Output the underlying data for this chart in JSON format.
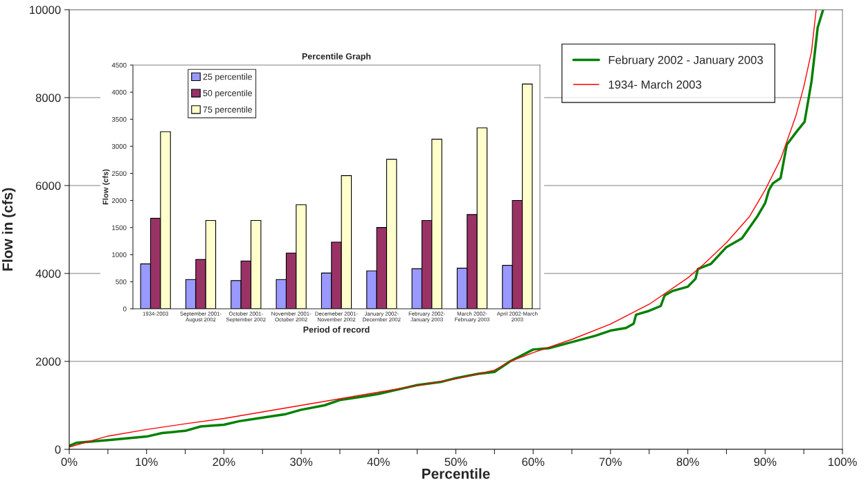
{
  "chart_data": [
    {
      "type": "line",
      "xlabel": "Percentile",
      "ylabel": "Flow in (cfs)",
      "xlim": [
        0,
        100
      ],
      "ylim": [
        0,
        10000
      ],
      "xticks": [
        {
          "value": 0,
          "label": "0%"
        },
        {
          "value": 5,
          "label": null
        },
        {
          "value": 10,
          "label": "10%"
        },
        {
          "value": 15,
          "label": null
        },
        {
          "value": 20,
          "label": "20%"
        },
        {
          "value": 25,
          "label": null
        },
        {
          "value": 30,
          "label": "30%"
        },
        {
          "value": 35,
          "label": null
        },
        {
          "value": 40,
          "label": "40%"
        },
        {
          "value": 45,
          "label": null
        },
        {
          "value": 50,
          "label": "50%"
        },
        {
          "value": 55,
          "label": null
        },
        {
          "value": 60,
          "label": "60%"
        },
        {
          "value": 65,
          "label": null
        },
        {
          "value": 70,
          "label": "70%"
        },
        {
          "value": 75,
          "label": null
        },
        {
          "value": 80,
          "label": "80%"
        },
        {
          "value": 85,
          "label": null
        },
        {
          "value": 90,
          "label": "90%"
        },
        {
          "value": 95,
          "label": null
        },
        {
          "value": 100,
          "label": "100%"
        }
      ],
      "yticks": [
        0,
        2000,
        4000,
        6000,
        8000,
        10000
      ],
      "grid": "y",
      "legend": "top right",
      "marker": "none",
      "line_style": "solid",
      "series": [
        {
          "name": "February 2002 - January 2003",
          "color": "#008000",
          "x": [
            0,
            1,
            5,
            10,
            12,
            15,
            17,
            20,
            22,
            25,
            28,
            30,
            33,
            35,
            38,
            40,
            43,
            45,
            48,
            50,
            53,
            55,
            57,
            60,
            62,
            65,
            68,
            70,
            72,
            73,
            73.3,
            75,
            76.5,
            77,
            78,
            80,
            81,
            81.3,
            83,
            85,
            87,
            89,
            90,
            90.5,
            91,
            92,
            92.8,
            94,
            95.1,
            96,
            96.8,
            97.5
          ],
          "values": [
            80,
            150,
            210,
            290,
            370,
            420,
            520,
            560,
            640,
            720,
            800,
            900,
            1000,
            1120,
            1200,
            1260,
            1380,
            1460,
            1530,
            1620,
            1720,
            1760,
            2000,
            2270,
            2300,
            2440,
            2580,
            2700,
            2760,
            2860,
            3060,
            3150,
            3260,
            3500,
            3600,
            3700,
            3880,
            4100,
            4220,
            4600,
            4800,
            5300,
            5600,
            5900,
            6050,
            6170,
            6930,
            7210,
            7450,
            8370,
            9600,
            10000
          ]
        },
        {
          "name": "1934- March 2003",
          "color": "#ff0000",
          "x": [
            0,
            5,
            10,
            15,
            20,
            25,
            30,
            35,
            40,
            45,
            50,
            55,
            57,
            60,
            65,
            70,
            75,
            80,
            82,
            85,
            88,
            90,
            92,
            94,
            95,
            96,
            96.6
          ],
          "values": [
            50,
            300,
            450,
            580,
            700,
            850,
            1000,
            1150,
            1300,
            1450,
            1600,
            1800,
            2000,
            2200,
            2500,
            2850,
            3300,
            3900,
            4200,
            4700,
            5300,
            5900,
            6600,
            7600,
            8250,
            9050,
            10000
          ]
        }
      ]
    },
    {
      "type": "bar",
      "title": "Percentile Graph",
      "xlabel": "Period of record",
      "ylabel": "Flow (cfs)",
      "ylim": [
        0,
        4500
      ],
      "yticks": [
        0,
        500,
        1000,
        1500,
        2000,
        2500,
        3000,
        3500,
        4000,
        4500
      ],
      "legend": "top left",
      "grid": false,
      "categories": [
        "1934-2003",
        "September 2001-\nAugust 2002",
        "October 2001-\nSeptember 2002",
        "November 2001-\nOctober 2002",
        "Decemeber 2001-\nNovember 2002",
        "January 2002-\nDecember 2002",
        "February 2002-\nJanuary 2003",
        "March 2002-\nFebruary 2003",
        "April 2002-March\n2003"
      ],
      "series": [
        {
          "name": "25 percentile",
          "color": "#9999ff",
          "values": [
            830,
            540,
            520,
            540,
            660,
            700,
            740,
            750,
            800
          ]
        },
        {
          "name": "50 percentile",
          "color": "#993366",
          "values": [
            1670,
            910,
            880,
            1030,
            1230,
            1500,
            1630,
            1740,
            2000
          ]
        },
        {
          "name": "75 percentile",
          "color": "#ffffcc",
          "values": [
            3270,
            1630,
            1630,
            1920,
            2460,
            2760,
            3130,
            3340,
            4150
          ]
        }
      ]
    }
  ]
}
